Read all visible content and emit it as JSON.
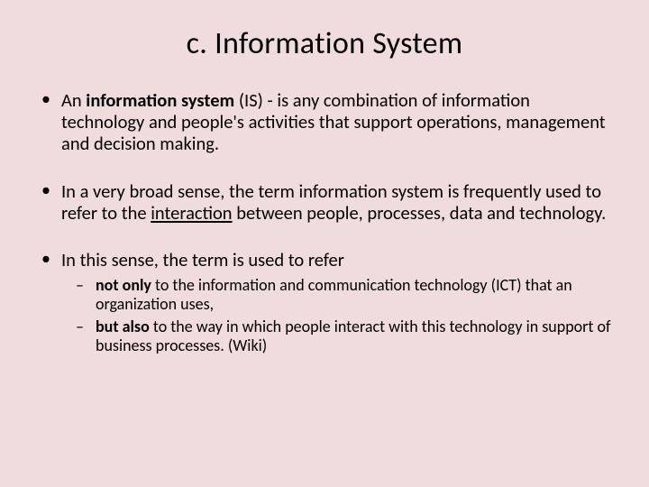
{
  "slide": {
    "background_color": "#f0dcdc",
    "text_color": "#000000",
    "title": "c. Information System",
    "title_fontsize": 34,
    "body_fontsize": 20.5,
    "sub_fontsize": 18,
    "bullets": [
      {
        "runs": [
          {
            "t": "An "
          },
          {
            "t": "information system",
            "bold": true
          },
          {
            "t": " (IS) - is any combination of information technology and people's activities that support operations, management and decision making."
          }
        ]
      },
      {
        "runs": [
          {
            "t": "In a very broad sense, the term information system is frequently used to refer to the "
          },
          {
            "t": "interaction",
            "underline": true
          },
          {
            "t": " between people, processes, data and technology."
          }
        ]
      },
      {
        "runs": [
          {
            "t": "In this sense, the term is used to refer"
          }
        ],
        "sub": [
          {
            "runs": [
              {
                "t": "not only",
                "bold": true
              },
              {
                "t": " to the information and communication technology (ICT) that an organization uses,"
              }
            ]
          },
          {
            "runs": [
              {
                "t": "but also",
                "bold": true
              },
              {
                "t": " to the way in which people interact with this technology in support of business processes.  (Wiki)"
              }
            ]
          }
        ]
      }
    ]
  }
}
